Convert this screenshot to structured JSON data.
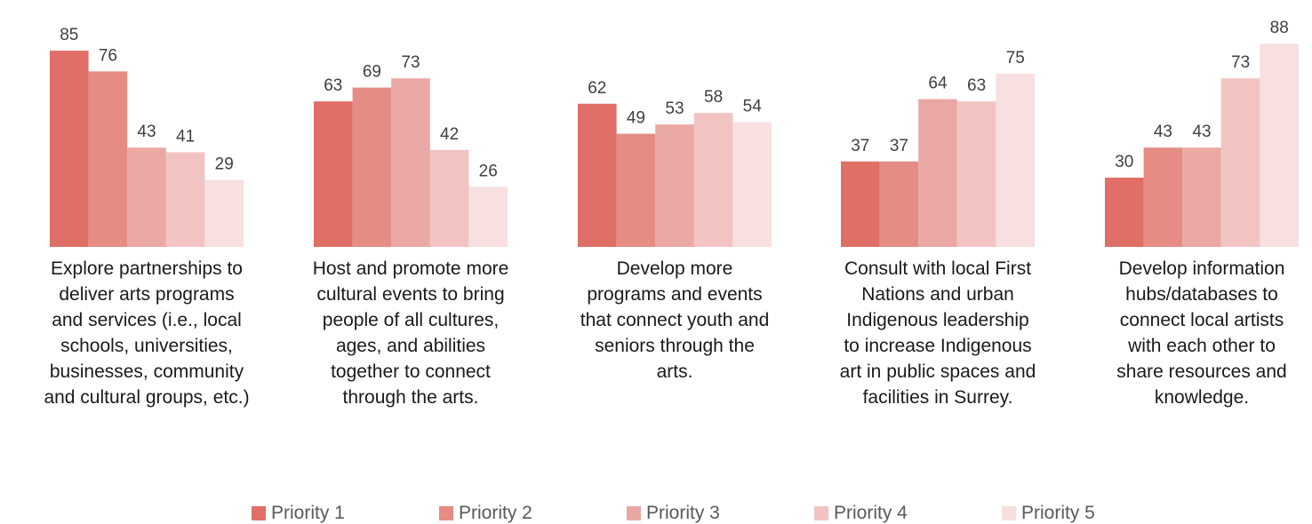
{
  "chart_data": {
    "type": "bar",
    "categories": [
      "Explore partnerships to\ndeliver arts programs\nand services  (i.e., local\nschools, universities,\nbusinesses, community\nand cultural groups, etc.)",
      "Host and promote more\ncultural events to bring\npeople of all cultures,\nages, and abilities\ntogether to connect\nthrough the arts.",
      "Develop more\nprograms and events\nthat connect youth and\nseniors through the\narts.",
      "Consult with local First\nNations and urban\nIndigenous leadership\nto increase Indigenous\nart in public spaces and\nfacilities in Surrey.",
      "Develop information\nhubs/databases to\nconnect local artists\nwith each other to\nshare resources and\nknowledge."
    ],
    "series": [
      {
        "name": "Priority 1",
        "color": "#e06f68",
        "values": [
          85,
          63,
          62,
          37,
          30
        ]
      },
      {
        "name": "Priority 2",
        "color": "#e58c85",
        "values": [
          76,
          69,
          49,
          37,
          43
        ]
      },
      {
        "name": "Priority 3",
        "color": "#eaa8a4",
        "values": [
          43,
          73,
          53,
          64,
          43
        ]
      },
      {
        "name": "Priority 4",
        "color": "#f1c4c2",
        "values": [
          41,
          42,
          58,
          63,
          73
        ]
      },
      {
        "name": "Priority 5",
        "color": "#f7e0df",
        "values": [
          29,
          26,
          54,
          75,
          88
        ]
      }
    ],
    "ylim": [
      0,
      100
    ],
    "grid": false,
    "legend": "bottom",
    "data_labels": true
  }
}
